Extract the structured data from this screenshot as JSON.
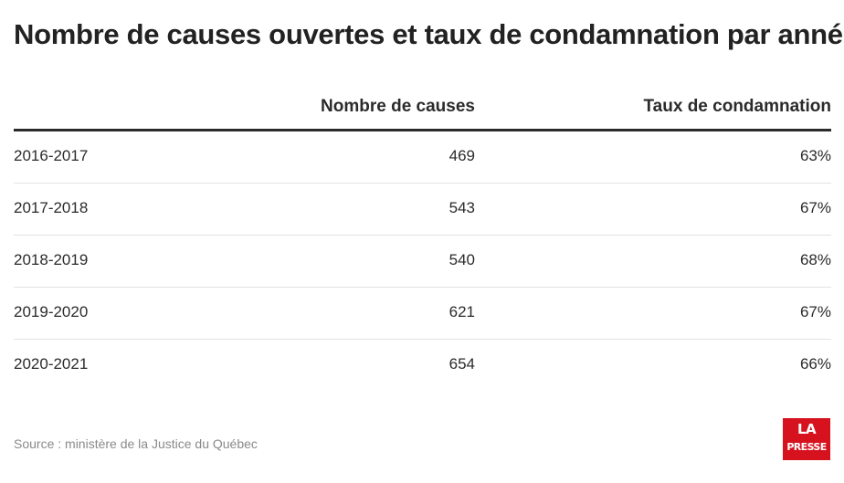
{
  "title": "Nombre de causes ouvertes et taux de condamnation par année",
  "columns": [
    "",
    "Nombre de causes",
    "Taux de condamnation"
  ],
  "rows": [
    [
      "2016-2017",
      "469",
      "63%"
    ],
    [
      "2017-2018",
      "543",
      "67%"
    ],
    [
      "2018-2019",
      "540",
      "68%"
    ],
    [
      "2019-2020",
      "621",
      "67%"
    ],
    [
      "2020-2021",
      "654",
      "66%"
    ]
  ],
  "source": "Source : ministère de la Justice du Québec",
  "logo": {
    "line1": "LA",
    "line2": "PRESSE",
    "color": "#d6121f"
  },
  "chart_data": {
    "type": "table",
    "title": "Nombre de causes ouvertes et taux de condamnation par année",
    "categories": [
      "2016-2017",
      "2017-2018",
      "2018-2019",
      "2019-2020",
      "2020-2021"
    ],
    "series": [
      {
        "name": "Nombre de causes",
        "values": [
          469,
          543,
          540,
          621,
          654
        ]
      },
      {
        "name": "Taux de condamnation",
        "values": [
          63,
          67,
          68,
          67,
          66
        ]
      }
    ]
  }
}
